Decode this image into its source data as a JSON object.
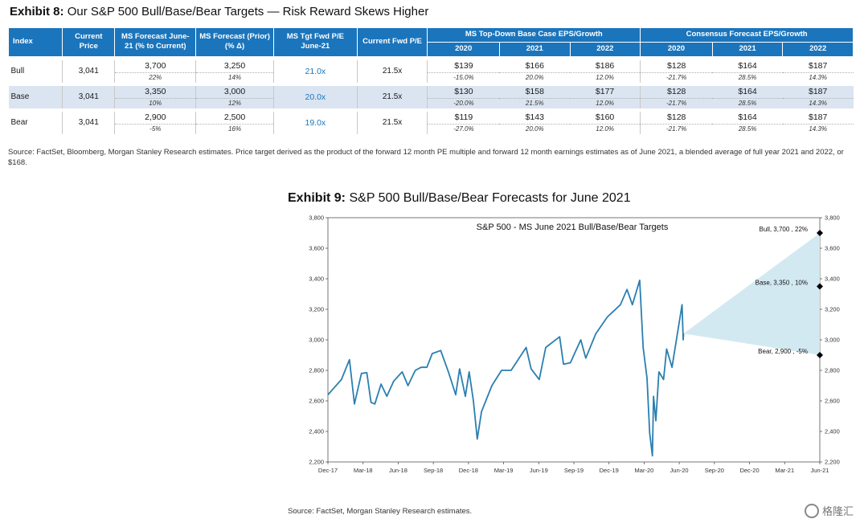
{
  "exhibit8": {
    "label": "Exhibit 8:",
    "title": "Our S&P 500 Bull/Base/Bear Targets — Risk Reward Skews Higher",
    "headers": {
      "index": "Index",
      "current_price": "Current Price",
      "ms_forecast": "MS Forecast June-21 (% to Current)",
      "ms_forecast_prior": "MS Forecast (Prior) (% Δ)",
      "ms_tgt_pe": "MS Tgt Fwd P/E June-21",
      "current_pe": "Current Fwd P/E",
      "topdown_group": "MS Top-Down Base Case EPS/Growth",
      "consensus_group": "Consensus Forecast EPS/Growth",
      "years": [
        "2020",
        "2021",
        "2022"
      ]
    },
    "rows": [
      {
        "index": "Bull",
        "current": "3,041",
        "forecast": "3,700",
        "forecast_pct": "22%",
        "prior": "3,250",
        "prior_pct": "14%",
        "tgt_pe": "21.0x",
        "cur_pe": "21.5x",
        "ms_eps": [
          "$139",
          "$166",
          "$186"
        ],
        "ms_growth": [
          "-15.0%",
          "20.0%",
          "12.0%"
        ],
        "cons_eps": [
          "$128",
          "$164",
          "$187"
        ],
        "cons_growth": [
          "-21.7%",
          "28.5%",
          "14.3%"
        ]
      },
      {
        "index": "Base",
        "current": "3,041",
        "forecast": "3,350",
        "forecast_pct": "10%",
        "prior": "3,000",
        "prior_pct": "12%",
        "tgt_pe": "20.0x",
        "cur_pe": "21.5x",
        "ms_eps": [
          "$130",
          "$158",
          "$177"
        ],
        "ms_growth": [
          "-20.0%",
          "21.5%",
          "12.0%"
        ],
        "cons_eps": [
          "$128",
          "$164",
          "$187"
        ],
        "cons_growth": [
          "-21.7%",
          "28.5%",
          "14.3%"
        ]
      },
      {
        "index": "Bear",
        "current": "3,041",
        "forecast": "2,900",
        "forecast_pct": "-5%",
        "prior": "2,500",
        "prior_pct": "16%",
        "tgt_pe": "19.0x",
        "cur_pe": "21.5x",
        "ms_eps": [
          "$119",
          "$143",
          "$160"
        ],
        "ms_growth": [
          "-27.0%",
          "20.0%",
          "12.0%"
        ],
        "cons_eps": [
          "$128",
          "$164",
          "$187"
        ],
        "cons_growth": [
          "-21.7%",
          "28.5%",
          "14.3%"
        ]
      }
    ],
    "source": "Source: FactSet, Bloomberg, Morgan Stanley Research estimates. Price target derived as the product of the forward 12 month PE multiple and forward 12 month earnings estimates as of June 2021, a blended average of full year 2021 and 2022, or $168."
  },
  "exhibit9": {
    "label": "Exhibit 9:",
    "title": "S&P 500 Bull/Base/Bear Forecasts for June 2021",
    "source": "Source: FactSet, Morgan Stanley Research estimates."
  },
  "chart_data": {
    "type": "line",
    "title": "S&P 500 - MS June 2021 Bull/Base/Bear Targets",
    "xlabel": "",
    "ylabel": "",
    "ylim": [
      2200,
      3800
    ],
    "yticks": [
      "2,200",
      "2,400",
      "2,600",
      "2,800",
      "3,000",
      "3,200",
      "3,400",
      "3,600",
      "3,800"
    ],
    "x_ticks": [
      "Dec-17",
      "Mar-18",
      "Jun-18",
      "Sep-18",
      "Dec-18",
      "Mar-19",
      "Jun-19",
      "Sep-19",
      "Dec-19",
      "Mar-20",
      "Jun-20",
      "Sep-20",
      "Dec-20",
      "Mar-21",
      "Jun-21"
    ],
    "x_range": [
      "2017-12-01",
      "2021-06-01"
    ],
    "grid": false,
    "series": [
      {
        "color": "#2a7fb0",
        "points": [
          [
            "2017-12-01",
            2640
          ],
          [
            "2017-12-15",
            2680
          ],
          [
            "2018-01-05",
            2740
          ],
          [
            "2018-01-26",
            2870
          ],
          [
            "2018-02-08",
            2580
          ],
          [
            "2018-02-26",
            2780
          ],
          [
            "2018-03-12",
            2785
          ],
          [
            "2018-03-23",
            2590
          ],
          [
            "2018-04-02",
            2580
          ],
          [
            "2018-04-18",
            2710
          ],
          [
            "2018-05-03",
            2630
          ],
          [
            "2018-05-21",
            2730
          ],
          [
            "2018-06-12",
            2790
          ],
          [
            "2018-06-27",
            2700
          ],
          [
            "2018-07-16",
            2800
          ],
          [
            "2018-07-31",
            2820
          ],
          [
            "2018-08-15",
            2820
          ],
          [
            "2018-08-29",
            2910
          ],
          [
            "2018-09-20",
            2930
          ],
          [
            "2018-10-10",
            2790
          ],
          [
            "2018-10-29",
            2640
          ],
          [
            "2018-11-08",
            2810
          ],
          [
            "2018-11-23",
            2630
          ],
          [
            "2018-12-03",
            2790
          ],
          [
            "2018-12-14",
            2600
          ],
          [
            "2018-12-24",
            2350
          ],
          [
            "2019-01-04",
            2530
          ],
          [
            "2019-01-31",
            2700
          ],
          [
            "2019-02-25",
            2800
          ],
          [
            "2019-03-22",
            2800
          ],
          [
            "2019-04-30",
            2950
          ],
          [
            "2019-05-13",
            2810
          ],
          [
            "2019-06-03",
            2740
          ],
          [
            "2019-06-20",
            2950
          ],
          [
            "2019-07-26",
            3020
          ],
          [
            "2019-08-05",
            2840
          ],
          [
            "2019-08-23",
            2850
          ],
          [
            "2019-09-19",
            3000
          ],
          [
            "2019-10-02",
            2880
          ],
          [
            "2019-10-28",
            3040
          ],
          [
            "2019-11-27",
            3150
          ],
          [
            "2019-12-31",
            3230
          ],
          [
            "2020-01-17",
            3330
          ],
          [
            "2020-01-31",
            3230
          ],
          [
            "2020-02-19",
            3390
          ],
          [
            "2020-02-28",
            2950
          ],
          [
            "2020-03-09",
            2750
          ],
          [
            "2020-03-16",
            2390
          ],
          [
            "2020-03-23",
            2240
          ],
          [
            "2020-03-26",
            2630
          ],
          [
            "2020-04-01",
            2470
          ],
          [
            "2020-04-09",
            2790
          ],
          [
            "2020-04-21",
            2740
          ],
          [
            "2020-04-29",
            2940
          ],
          [
            "2020-05-13",
            2820
          ],
          [
            "2020-05-27",
            3040
          ],
          [
            "2020-06-08",
            3230
          ],
          [
            "2020-06-11",
            3000
          ],
          [
            "2020-06-12",
            3041
          ]
        ]
      }
    ],
    "projection": {
      "start": [
        "2020-06-12",
        3041
      ],
      "end_date": "2021-06-01",
      "fill": "#d3e9f2",
      "targets": [
        {
          "label": "Bull, 3,700 , 22%",
          "value": 3700
        },
        {
          "label": "Base, 3,350 , 10%",
          "value": 3350
        },
        {
          "label": "Bear, 2,900 , -5%",
          "value": 2900
        }
      ]
    }
  },
  "watermark": {
    "text": "格隆汇"
  }
}
